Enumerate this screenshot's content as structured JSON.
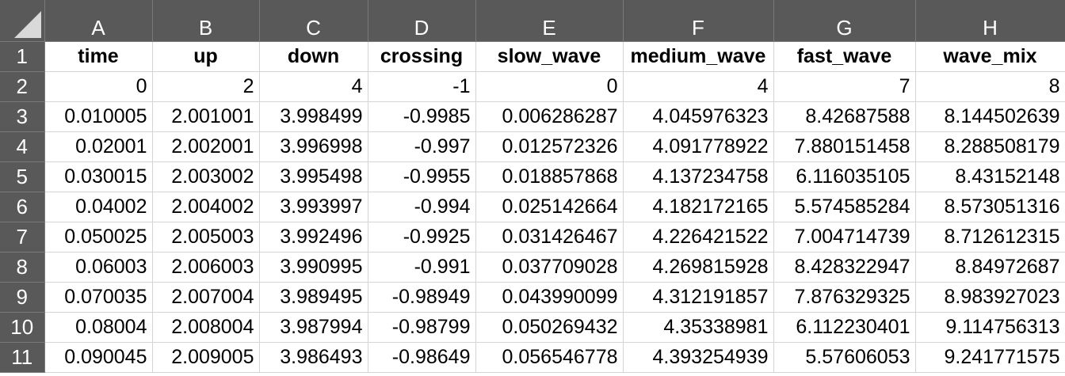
{
  "sheet": {
    "columns": [
      "A",
      "B",
      "C",
      "D",
      "E",
      "F",
      "G",
      "H"
    ],
    "row_numbers": [
      "1",
      "2",
      "3",
      "4",
      "5",
      "6",
      "7",
      "8",
      "9",
      "10",
      "11"
    ],
    "headers": [
      "time",
      "up",
      "down",
      "crossing",
      "slow_wave",
      "medium_wave",
      "fast_wave",
      "wave_mix"
    ],
    "rows": [
      [
        "0",
        "2",
        "4",
        "-1",
        "0",
        "4",
        "7",
        "8"
      ],
      [
        "0.010005",
        "2.001001",
        "3.998499",
        "-0.9985",
        "0.006286287",
        "4.045976323",
        "8.42687588",
        "8.144502639"
      ],
      [
        "0.02001",
        "2.002001",
        "3.996998",
        "-0.997",
        "0.012572326",
        "4.091778922",
        "7.880151458",
        "8.288508179"
      ],
      [
        "0.030015",
        "2.003002",
        "3.995498",
        "-0.9955",
        "0.018857868",
        "4.137234758",
        "6.116035105",
        "8.43152148"
      ],
      [
        "0.04002",
        "2.004002",
        "3.993997",
        "-0.994",
        "0.025142664",
        "4.182172165",
        "5.574585284",
        "8.573051316"
      ],
      [
        "0.050025",
        "2.005003",
        "3.992496",
        "-0.9925",
        "0.031426467",
        "4.226421522",
        "7.004714739",
        "8.712612315"
      ],
      [
        "0.06003",
        "2.006003",
        "3.990995",
        "-0.991",
        "0.037709028",
        "4.269815928",
        "8.428322947",
        "8.84972687"
      ],
      [
        "0.070035",
        "2.007004",
        "3.989495",
        "-0.98949",
        "0.043990099",
        "4.312191857",
        "7.876329325",
        "8.983927023"
      ],
      [
        "0.08004",
        "2.008004",
        "3.987994",
        "-0.98799",
        "0.050269432",
        "4.35338981",
        "6.112230401",
        "9.114756313"
      ],
      [
        "0.090045",
        "2.009005",
        "3.986493",
        "-0.98649",
        "0.056546778",
        "4.393254939",
        "5.57606053",
        "9.241771575"
      ]
    ]
  },
  "colors": {
    "header_bg": "#595959",
    "header_text": "#ffffff",
    "grid_line": "#d4d4d4"
  },
  "icons": {
    "corner": "select-all-triangle-icon"
  }
}
